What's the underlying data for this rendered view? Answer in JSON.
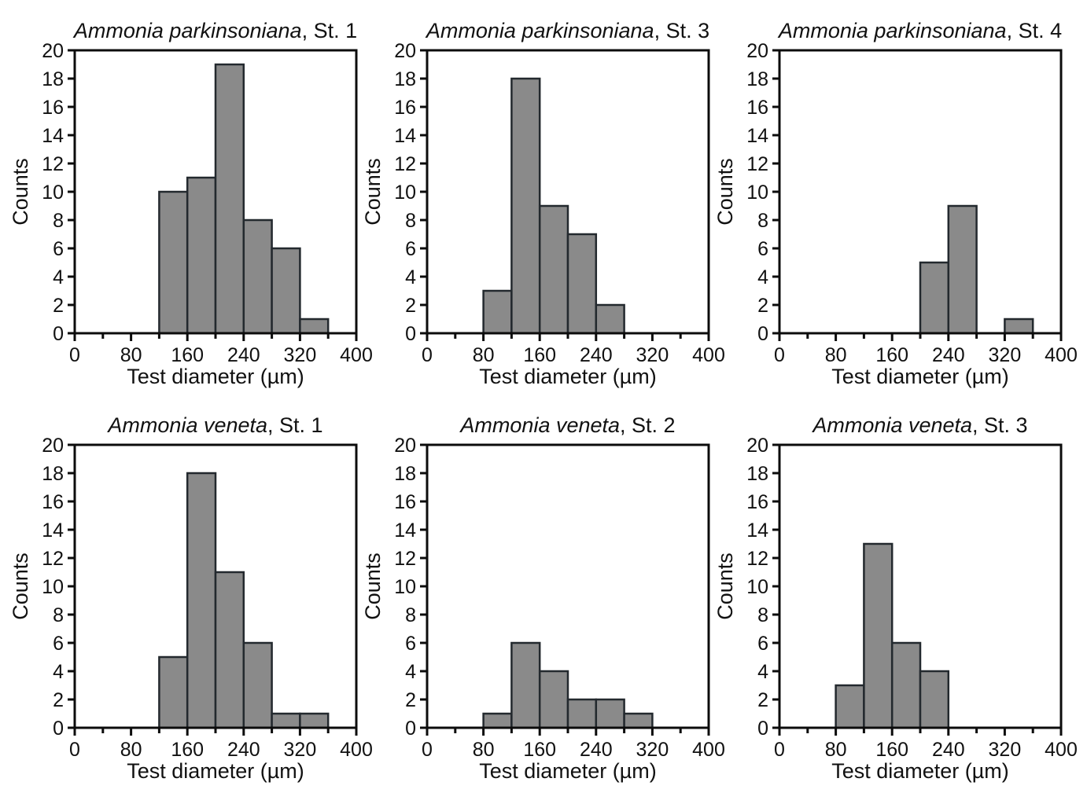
{
  "figure": {
    "background": "#ffffff",
    "panels_layout": "2 rows x 3 columns"
  },
  "style": {
    "bar_fill": "#8a8a8a",
    "bar_stroke": "#23292e",
    "axis_color": "#0c0c0c",
    "text_color": "#111111"
  },
  "chart_data": [
    {
      "type": "bar",
      "subtype": "histogram",
      "title_parts": [
        {
          "text": "Ammonia parkinsoniana",
          "italic": true
        },
        {
          "text": ", St. 1",
          "italic": false
        }
      ],
      "xlabel": "Test diameter (µm)",
      "ylabel": "Counts",
      "xlim": [
        0,
        400
      ],
      "ylim": [
        0,
        20
      ],
      "x_major_ticks": [
        0,
        80,
        160,
        240,
        320,
        400
      ],
      "x_minor_step": 40,
      "y_tick_step": 2,
      "bin_width": 40,
      "bins": [
        {
          "start": 120,
          "count": 10
        },
        {
          "start": 160,
          "count": 11
        },
        {
          "start": 200,
          "count": 19
        },
        {
          "start": 240,
          "count": 8
        },
        {
          "start": 280,
          "count": 6
        },
        {
          "start": 320,
          "count": 1
        }
      ],
      "grid": false,
      "legend": null
    },
    {
      "type": "bar",
      "subtype": "histogram",
      "title_parts": [
        {
          "text": "Ammonia parkinsoniana",
          "italic": true
        },
        {
          "text": ", St. 3",
          "italic": false
        }
      ],
      "xlabel": "Test diameter (µm)",
      "ylabel": "Counts",
      "xlim": [
        0,
        400
      ],
      "ylim": [
        0,
        20
      ],
      "x_major_ticks": [
        0,
        80,
        160,
        240,
        320,
        400
      ],
      "x_minor_step": 40,
      "y_tick_step": 2,
      "bin_width": 40,
      "bins": [
        {
          "start": 80,
          "count": 3
        },
        {
          "start": 120,
          "count": 18
        },
        {
          "start": 160,
          "count": 9
        },
        {
          "start": 200,
          "count": 7
        },
        {
          "start": 240,
          "count": 2
        }
      ],
      "grid": false,
      "legend": null
    },
    {
      "type": "bar",
      "subtype": "histogram",
      "title_parts": [
        {
          "text": "Ammonia parkinsoniana",
          "italic": true
        },
        {
          "text": ", St. 4",
          "italic": false
        }
      ],
      "xlabel": "Test diameter (µm)",
      "ylabel": "Counts",
      "xlim": [
        0,
        400
      ],
      "ylim": [
        0,
        20
      ],
      "x_major_ticks": [
        0,
        80,
        160,
        240,
        320,
        400
      ],
      "x_minor_step": 40,
      "y_tick_step": 2,
      "bin_width": 40,
      "bins": [
        {
          "start": 200,
          "count": 5
        },
        {
          "start": 240,
          "count": 9
        },
        {
          "start": 320,
          "count": 1
        }
      ],
      "grid": false,
      "legend": null
    },
    {
      "type": "bar",
      "subtype": "histogram",
      "title_parts": [
        {
          "text": "Ammonia veneta",
          "italic": true
        },
        {
          "text": ", St. 1",
          "italic": false
        }
      ],
      "xlabel": "Test diameter (µm)",
      "ylabel": "Counts",
      "xlim": [
        0,
        400
      ],
      "ylim": [
        0,
        20
      ],
      "x_major_ticks": [
        0,
        80,
        160,
        240,
        320,
        400
      ],
      "x_minor_step": 40,
      "y_tick_step": 2,
      "bin_width": 40,
      "bins": [
        {
          "start": 120,
          "count": 5
        },
        {
          "start": 160,
          "count": 18
        },
        {
          "start": 200,
          "count": 11
        },
        {
          "start": 240,
          "count": 6
        },
        {
          "start": 280,
          "count": 1
        },
        {
          "start": 320,
          "count": 1
        }
      ],
      "grid": false,
      "legend": null
    },
    {
      "type": "bar",
      "subtype": "histogram",
      "title_parts": [
        {
          "text": "Ammonia veneta",
          "italic": true
        },
        {
          "text": ", St. 2",
          "italic": false
        }
      ],
      "xlabel": "Test diameter (µm)",
      "ylabel": "Counts",
      "xlim": [
        0,
        400
      ],
      "ylim": [
        0,
        20
      ],
      "x_major_ticks": [
        0,
        80,
        160,
        240,
        320,
        400
      ],
      "x_minor_step": 40,
      "y_tick_step": 2,
      "bin_width": 40,
      "bins": [
        {
          "start": 80,
          "count": 1
        },
        {
          "start": 120,
          "count": 6
        },
        {
          "start": 160,
          "count": 4
        },
        {
          "start": 200,
          "count": 2
        },
        {
          "start": 240,
          "count": 2
        },
        {
          "start": 280,
          "count": 1
        }
      ],
      "grid": false,
      "legend": null
    },
    {
      "type": "bar",
      "subtype": "histogram",
      "title_parts": [
        {
          "text": "Ammonia veneta",
          "italic": true
        },
        {
          "text": ", St. 3",
          "italic": false
        }
      ],
      "xlabel": "Test diameter (µm)",
      "ylabel": "Counts",
      "xlim": [
        0,
        400
      ],
      "ylim": [
        0,
        20
      ],
      "x_major_ticks": [
        0,
        80,
        160,
        240,
        320,
        400
      ],
      "x_minor_step": 40,
      "y_tick_step": 2,
      "bin_width": 40,
      "bins": [
        {
          "start": 80,
          "count": 3
        },
        {
          "start": 120,
          "count": 13
        },
        {
          "start": 160,
          "count": 6
        },
        {
          "start": 200,
          "count": 4
        }
      ],
      "grid": false,
      "legend": null
    }
  ]
}
